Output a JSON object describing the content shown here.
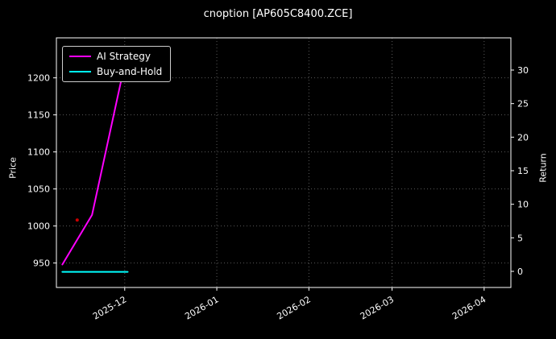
{
  "chart_data": {
    "type": "line",
    "title": "cnoption [AP605C8400.ZCE]",
    "ylabel_left": "Price",
    "ylabel_right": "Return",
    "background_color": "#000000",
    "text_color": "#ffffff",
    "grid_color": "#5a5a5a",
    "spine_color": "#ffffff",
    "grid": "dotted",
    "legend_position": "upper-left",
    "x_range": [
      "2025-11-08",
      "2026-04-10"
    ],
    "x_ticks": [
      {
        "date": "2025-12-01",
        "label": "2025-12"
      },
      {
        "date": "2026-01-01",
        "label": "2026-01"
      },
      {
        "date": "2026-02-01",
        "label": "2026-02"
      },
      {
        "date": "2026-03-01",
        "label": "2026-03"
      },
      {
        "date": "2026-04-01",
        "label": "2026-04"
      }
    ],
    "ylim_left": [
      917,
      1254
    ],
    "y_ticks_left": [
      950,
      1000,
      1050,
      1100,
      1150,
      1200
    ],
    "ylim_right": [
      -2.4,
      34.8
    ],
    "y_ticks_right": [
      0,
      5,
      10,
      15,
      20,
      25,
      30
    ],
    "series": [
      {
        "name": "AI Strategy",
        "color": "#ff00ff",
        "line_width": 2,
        "points": [
          {
            "date": "2025-11-10",
            "price": 948
          },
          {
            "date": "2025-11-20",
            "price": 1015
          },
          {
            "date": "2025-11-30",
            "price": 1200
          }
        ]
      },
      {
        "name": "Buy-and-Hold",
        "color": "#00ffff",
        "line_width": 2,
        "points": [
          {
            "date": "2025-11-10",
            "price": 938
          },
          {
            "date": "2025-12-02",
            "price": 938
          }
        ]
      }
    ],
    "markers": [
      {
        "name": "trade-marker",
        "date": "2025-11-15",
        "price": 1008,
        "color": "#cc0000",
        "radius": 2
      }
    ]
  }
}
